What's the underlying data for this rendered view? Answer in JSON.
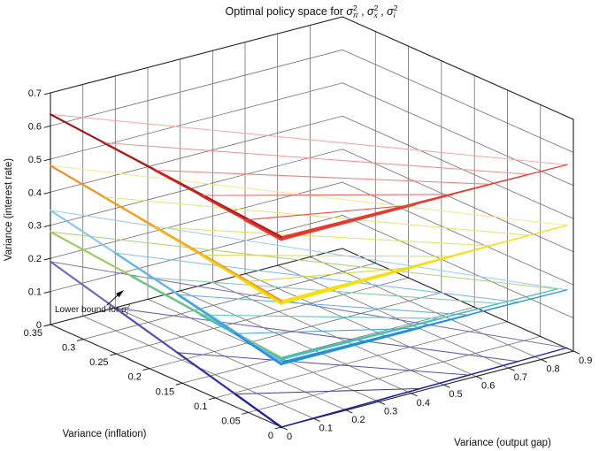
{
  "figure": {
    "background": "#ffffff",
    "title": {
      "prefix": "Optimal policy space for ",
      "separator": " , ",
      "terms": [
        {
          "base": "σ",
          "sup": "2",
          "sub": "π"
        },
        {
          "base": "σ",
          "sup": "2",
          "sub": "x"
        },
        {
          "base": "σ",
          "sup": "2",
          "sub": "i"
        }
      ]
    }
  },
  "axes": {
    "x": {
      "label": "Variance (inflation)",
      "range": [
        0,
        0.35
      ],
      "ticks": [
        "0",
        "0.05",
        "0.1",
        "0.15",
        "0.2",
        "0.25",
        "0.3",
        "0.35"
      ]
    },
    "y": {
      "label": "Variance (output gap)",
      "range": [
        0,
        0.9
      ],
      "ticks": [
        "0",
        "0.1",
        "0.2",
        "0.3",
        "0.4",
        "0.5",
        "0.6",
        "0.7",
        "0.8",
        "0.9"
      ]
    },
    "z": {
      "label": "Variance (interest rate)",
      "range": [
        0,
        0.7
      ],
      "ticks": [
        "0",
        "0.1",
        "0.2",
        "0.3",
        "0.4",
        "0.5",
        "0.6",
        "0.7"
      ]
    }
  },
  "annotation": {
    "prefix": "Lower bound for ",
    "term": {
      "base": "σ",
      "sup": "2",
      "sub": "i"
    }
  },
  "chart_data": {
    "type": "line3d",
    "title": "Optimal policy space for σπ², σx², σi²",
    "xlabel": "Variance (inflation)",
    "ylabel": "Variance (output gap)",
    "zlabel": "Variance (interest rate)",
    "xlim": [
      0,
      0.35
    ],
    "ylim": [
      0,
      0.9
    ],
    "zlim": [
      0,
      0.7
    ],
    "grid": true,
    "description": "Five stacked triangular optimal-policy frontier families. Each family is a set of nested coplanar triangles sharing apex B=(0,0,zB), with left vertices A_k sliding from A toward B along the inflation wall (y=0) and right vertices C_k sliding from C toward B along the output-gap wall (x=0). Vertices are [variance_inflation, variance_output_gap, variance_interest_rate].",
    "families": [
      {
        "name": "red",
        "A": [
          0.35,
          0,
          0.635
        ],
        "B": [
          0,
          0,
          0.575
        ],
        "C": [
          0,
          0.88,
          0.568
        ],
        "apex_drop": 0.01,
        "t": [
          0,
          0.23,
          0.45,
          0.65,
          0.84
        ],
        "s": [
          0,
          0.14,
          0.28,
          0.42,
          0.56
        ],
        "edge_colors": [
          "#9c1616",
          "#b31b1b",
          "#c92222",
          "#da2a26",
          "#e63a2e"
        ],
        "rib_colors": [
          "#f3a9a9",
          "#f09393",
          "#ee7d7d",
          "#ea6464",
          "#e74f48"
        ]
      },
      {
        "name": "yellow",
        "A": [
          0.35,
          0,
          0.48
        ],
        "B": [
          0,
          0,
          0.382
        ],
        "C": [
          0,
          0.88,
          0.385
        ],
        "apex_drop": 0.01,
        "t": [
          0,
          0.23,
          0.45,
          0.65,
          0.84
        ],
        "s": [
          0,
          0.14,
          0.28,
          0.42,
          0.56
        ],
        "edge_colors": [
          "#ee8a20",
          "#f2a11a",
          "#f4b915",
          "#f6ce10",
          "#f5df0d"
        ],
        "rib_colors": [
          "#ebeb92",
          "#e6e678",
          "#e1e15e",
          "#dcdc47",
          "#d7d732"
        ]
      },
      {
        "name": "sky-blue",
        "A": [
          0.35,
          0,
          0.345
        ],
        "B": [
          0,
          0,
          0.197
        ],
        "C": [
          0,
          0.88,
          0.19
        ],
        "apex_drop": 0.008,
        "t": [
          0,
          0.28,
          0.55,
          0.8
        ],
        "s": [
          0,
          0.18,
          0.36,
          0.54
        ],
        "edge_colors": [
          "#85c7ea",
          "#60b4e6",
          "#3da2e0",
          "#2290da"
        ],
        "rib_colors": [
          "#97cfee",
          "#7ac0e9",
          "#5db0e4",
          "#40a1de"
        ]
      },
      {
        "name": "green-teal",
        "A": [
          0.35,
          0,
          0.28
        ],
        "B": [
          0,
          0,
          0.21
        ],
        "C": [
          0,
          0.85,
          0.2
        ],
        "apex_drop": 0.006,
        "t": [
          0,
          0.35,
          0.65
        ],
        "s": [
          0,
          0.22,
          0.44
        ],
        "edge_colors": [
          "#9fca5a",
          "#66c397",
          "#49c0b8"
        ],
        "rib_colors": [
          "#afd278",
          "#84cba8",
          "#5ac7c2"
        ]
      },
      {
        "name": "purple-navy",
        "A": [
          0.35,
          0,
          0.19
        ],
        "B": [
          0,
          0,
          0
        ],
        "C": [
          0,
          0.88,
          0.015
        ],
        "apex_drop": 0,
        "t": [
          0,
          0.28,
          0.55,
          0.8
        ],
        "s": [
          0,
          0.18,
          0.36,
          0.54
        ],
        "edge_colors": [
          "#7266bb",
          "#5650b3",
          "#3a39aa",
          "#23229e"
        ],
        "rib_colors": [
          "#7e73b8",
          "#695fb0",
          "#544ea8",
          "#3f3da0"
        ]
      }
    ],
    "colors": {
      "grid": "#6f6f6f",
      "box_edge": "#222222",
      "text": "#111111"
    }
  }
}
